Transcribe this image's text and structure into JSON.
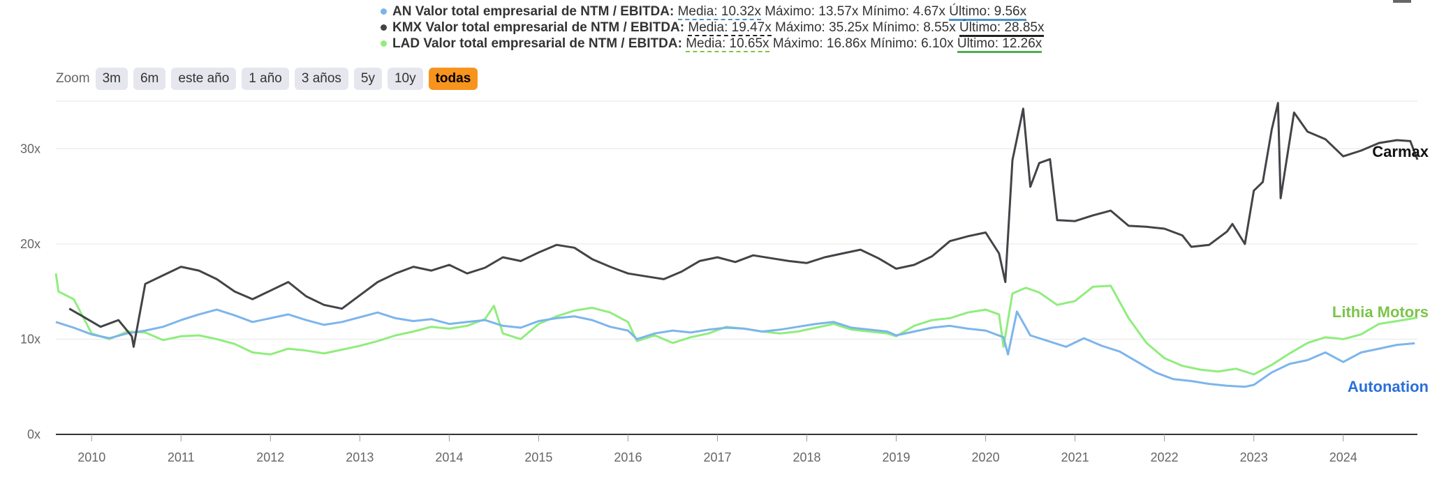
{
  "legend": [
    {
      "name": "AN Valor total empresarial de NTM / EBITDA:",
      "color": "#7cb5ec",
      "media": "Media: 10.32x",
      "maximo": "Máximo: 13.57x",
      "minimo": "Mínimo: 4.67x",
      "ultimo": "Último: 9.56x"
    },
    {
      "name": "KMX Valor total empresarial de NTM / EBITDA:",
      "color": "#434348",
      "media": "Media: 19.47x",
      "maximo": "Máximo: 35.25x",
      "minimo": "Mínimo: 8.55x",
      "ultimo": "Último: 28.85x"
    },
    {
      "name": "LAD Valor total empresarial de NTM / EBITDA:",
      "color": "#90ed7d",
      "media": "Media: 10.65x",
      "maximo": "Máximo: 16.86x",
      "minimo": "Mínimo: 6.10x",
      "ultimo": "Último: 12.26x"
    }
  ],
  "zoom": {
    "label": "Zoom",
    "buttons": [
      "3m",
      "6m",
      "este año",
      "1 año",
      "3 años",
      "5y",
      "10y",
      "todas"
    ],
    "active": "todas"
  },
  "chart_data": {
    "type": "line",
    "ylim": [
      0,
      35
    ],
    "xlim": [
      2009.6,
      2024.83
    ],
    "yticks": [
      {
        "value": 0,
        "label": "0x"
      },
      {
        "value": 10,
        "label": "10x"
      },
      {
        "value": 20,
        "label": "20x"
      },
      {
        "value": 30,
        "label": "30x"
      }
    ],
    "xticks": [
      "2010",
      "2011",
      "2012",
      "2013",
      "2014",
      "2015",
      "2016",
      "2017",
      "2018",
      "2019",
      "2020",
      "2021",
      "2022",
      "2023",
      "2024"
    ],
    "grid": true,
    "series": [
      {
        "key": "AN",
        "name": "Autonation",
        "color": "#7cb5ec",
        "label_color": "#2a6fdb",
        "x": [
          2009.6,
          2009.8,
          2010.0,
          2010.2,
          2010.4,
          2010.6,
          2010.8,
          2011.0,
          2011.2,
          2011.4,
          2011.6,
          2011.8,
          2012.0,
          2012.2,
          2012.4,
          2012.6,
          2012.8,
          2013.0,
          2013.2,
          2013.4,
          2013.6,
          2013.8,
          2014.0,
          2014.2,
          2014.4,
          2014.6,
          2014.8,
          2015.0,
          2015.2,
          2015.4,
          2015.6,
          2015.8,
          2016.0,
          2016.1,
          2016.3,
          2016.5,
          2016.7,
          2016.9,
          2017.1,
          2017.3,
          2017.5,
          2017.7,
          2017.9,
          2018.1,
          2018.3,
          2018.5,
          2018.7,
          2018.9,
          2019.0,
          2019.2,
          2019.4,
          2019.6,
          2019.8,
          2020.0,
          2020.2,
          2020.25,
          2020.35,
          2020.5,
          2020.7,
          2020.9,
          2021.1,
          2021.3,
          2021.5,
          2021.7,
          2021.9,
          2022.1,
          2022.3,
          2022.5,
          2022.7,
          2022.9,
          2023.0,
          2023.2,
          2023.4,
          2023.6,
          2023.8,
          2024.0,
          2024.2,
          2024.4,
          2024.6,
          2024.8
        ],
        "y": [
          11.8,
          11.2,
          10.5,
          10.1,
          10.6,
          10.9,
          11.3,
          12.0,
          12.6,
          13.1,
          12.5,
          11.8,
          12.2,
          12.6,
          12.0,
          11.5,
          11.8,
          12.3,
          12.8,
          12.2,
          11.9,
          12.1,
          11.6,
          11.8,
          12.0,
          11.4,
          11.2,
          11.9,
          12.2,
          12.4,
          12.0,
          11.3,
          10.9,
          10.0,
          10.6,
          10.9,
          10.7,
          11.0,
          11.2,
          11.1,
          10.8,
          11.0,
          11.3,
          11.6,
          11.8,
          11.2,
          11.0,
          10.8,
          10.4,
          10.8,
          11.2,
          11.4,
          11.1,
          10.9,
          10.2,
          8.4,
          12.9,
          10.4,
          9.8,
          9.2,
          10.1,
          9.3,
          8.7,
          7.6,
          6.5,
          5.8,
          5.6,
          5.3,
          5.1,
          5.0,
          5.2,
          6.5,
          7.4,
          7.8,
          8.6,
          7.6,
          8.6,
          9.0,
          9.4,
          9.56
        ]
      },
      {
        "key": "KMX",
        "name": "Carmax",
        "color": "#434348",
        "label_color": "#111111",
        "x": [
          2009.75,
          2009.9,
          2010.1,
          2010.3,
          2010.45,
          2010.47,
          2010.6,
          2010.8,
          2011.0,
          2011.2,
          2011.4,
          2011.6,
          2011.8,
          2012.0,
          2012.2,
          2012.4,
          2012.6,
          2012.8,
          2013.0,
          2013.2,
          2013.4,
          2013.6,
          2013.8,
          2014.0,
          2014.2,
          2014.4,
          2014.6,
          2014.8,
          2015.0,
          2015.2,
          2015.4,
          2015.6,
          2015.8,
          2016.0,
          2016.2,
          2016.4,
          2016.6,
          2016.8,
          2017.0,
          2017.2,
          2017.4,
          2017.6,
          2017.8,
          2018.0,
          2018.2,
          2018.4,
          2018.6,
          2018.8,
          2019.0,
          2019.2,
          2019.4,
          2019.6,
          2019.8,
          2020.0,
          2020.15,
          2020.22,
          2020.3,
          2020.42,
          2020.5,
          2020.6,
          2020.72,
          2020.8,
          2021.0,
          2021.2,
          2021.4,
          2021.6,
          2021.8,
          2022.0,
          2022.2,
          2022.3,
          2022.5,
          2022.7,
          2022.76,
          2022.9,
          2023.0,
          2023.1,
          2023.2,
          2023.27,
          2023.3,
          2023.45,
          2023.6,
          2023.8,
          2024.0,
          2024.2,
          2024.4,
          2024.6,
          2024.75,
          2024.83
        ],
        "y": [
          13.2,
          12.4,
          11.3,
          12.0,
          10.3,
          9.2,
          15.8,
          16.7,
          17.6,
          17.2,
          16.3,
          15.0,
          14.2,
          15.1,
          16.0,
          14.5,
          13.6,
          13.2,
          14.6,
          16.0,
          16.9,
          17.6,
          17.2,
          17.8,
          16.9,
          17.5,
          18.6,
          18.2,
          19.1,
          19.9,
          19.6,
          18.4,
          17.6,
          16.9,
          16.6,
          16.3,
          17.1,
          18.2,
          18.6,
          18.1,
          18.8,
          18.5,
          18.2,
          18.0,
          18.6,
          19.0,
          19.4,
          18.5,
          17.4,
          17.8,
          18.7,
          20.3,
          20.8,
          21.2,
          19.0,
          16.0,
          28.8,
          34.2,
          26.0,
          28.5,
          28.9,
          22.5,
          22.4,
          23.0,
          23.5,
          21.9,
          21.8,
          21.6,
          20.9,
          19.7,
          19.9,
          21.3,
          22.1,
          20.0,
          25.6,
          26.5,
          32.0,
          34.8,
          24.8,
          33.8,
          31.8,
          31.0,
          29.2,
          29.8,
          30.6,
          30.9,
          30.8,
          28.85
        ]
      },
      {
        "key": "LAD",
        "name": "Lithia Motors",
        "color": "#90ed7d",
        "label_color": "#7cc44a",
        "x": [
          2009.6,
          2009.63,
          2009.8,
          2010.0,
          2010.2,
          2010.4,
          2010.6,
          2010.8,
          2011.0,
          2011.2,
          2011.4,
          2011.6,
          2011.8,
          2012.0,
          2012.2,
          2012.4,
          2012.6,
          2012.8,
          2013.0,
          2013.2,
          2013.4,
          2013.6,
          2013.8,
          2014.0,
          2014.2,
          2014.4,
          2014.5,
          2014.6,
          2014.8,
          2015.0,
          2015.2,
          2015.4,
          2015.6,
          2015.8,
          2016.0,
          2016.1,
          2016.3,
          2016.5,
          2016.7,
          2016.9,
          2017.1,
          2017.3,
          2017.5,
          2017.7,
          2017.9,
          2018.1,
          2018.3,
          2018.5,
          2018.7,
          2018.9,
          2019.0,
          2019.2,
          2019.4,
          2019.6,
          2019.8,
          2020.0,
          2020.15,
          2020.2,
          2020.3,
          2020.45,
          2020.6,
          2020.8,
          2021.0,
          2021.2,
          2021.4,
          2021.6,
          2021.8,
          2022.0,
          2022.2,
          2022.4,
          2022.6,
          2022.8,
          2023.0,
          2023.2,
          2023.4,
          2023.6,
          2023.8,
          2024.0,
          2024.2,
          2024.4,
          2024.6,
          2024.83
        ],
        "y": [
          16.9,
          15.0,
          14.2,
          10.6,
          10.0,
          10.8,
          10.7,
          9.9,
          10.3,
          10.4,
          10.0,
          9.5,
          8.6,
          8.4,
          9.0,
          8.8,
          8.5,
          8.9,
          9.3,
          9.8,
          10.4,
          10.8,
          11.3,
          11.1,
          11.4,
          12.1,
          13.5,
          10.6,
          10.0,
          11.6,
          12.4,
          13.0,
          13.3,
          12.8,
          11.8,
          9.8,
          10.4,
          9.6,
          10.2,
          10.6,
          11.3,
          11.1,
          10.8,
          10.6,
          10.8,
          11.2,
          11.6,
          11.0,
          10.8,
          10.6,
          10.3,
          11.4,
          12.0,
          12.2,
          12.8,
          13.1,
          12.6,
          9.2,
          14.8,
          15.4,
          14.9,
          13.6,
          14.0,
          15.5,
          15.6,
          12.2,
          9.6,
          8.0,
          7.2,
          6.8,
          6.6,
          6.9,
          6.3,
          7.3,
          8.5,
          9.6,
          10.2,
          10.0,
          10.5,
          11.6,
          11.9,
          12.26
        ]
      }
    ]
  }
}
